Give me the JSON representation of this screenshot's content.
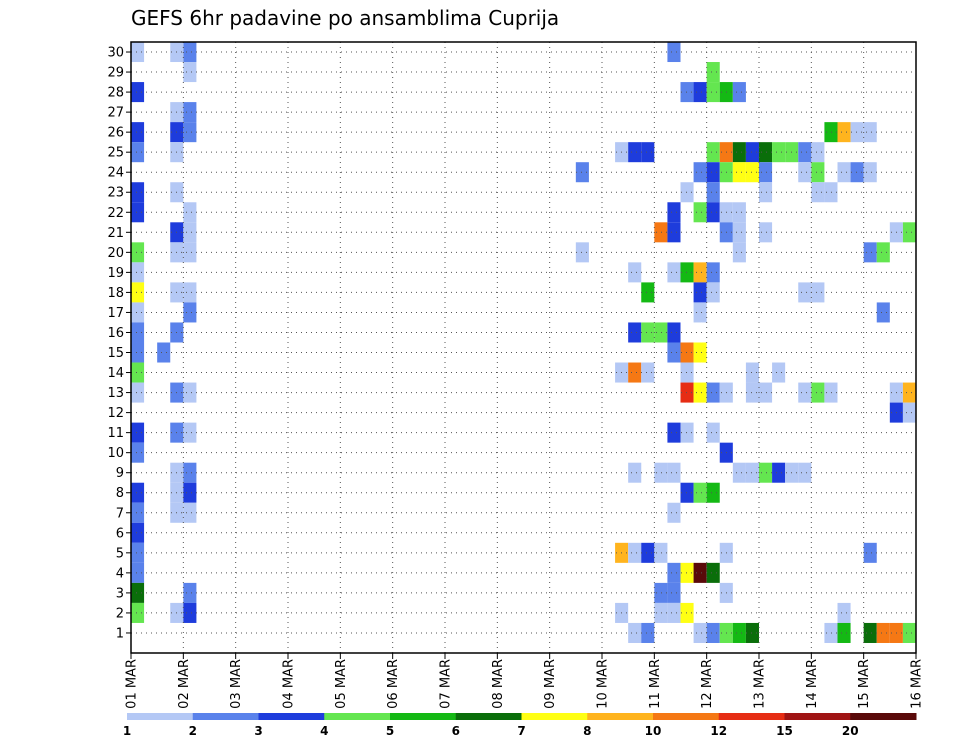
{
  "chart_data": {
    "type": "heatmap",
    "title": "GEFS 6hr padavine po ansamblima Cuprija",
    "xlabel": "",
    "ylabel": "",
    "x_tick_labels": [
      "01 MAR",
      "02 MAR",
      "03 MAR",
      "04 MAR",
      "05 MAR",
      "06 MAR",
      "07 MAR",
      "08 MAR",
      "09 MAR",
      "10 MAR",
      "11 MAR",
      "12 MAR",
      "13 MAR",
      "14 MAR",
      "15 MAR",
      "16 MAR"
    ],
    "y_tick_labels": [
      "1",
      "2",
      "3",
      "4",
      "5",
      "6",
      "7",
      "8",
      "9",
      "10",
      "11",
      "12",
      "13",
      "14",
      "15",
      "16",
      "17",
      "18",
      "19",
      "20",
      "21",
      "22",
      "23",
      "24",
      "25",
      "26",
      "27",
      "28",
      "29",
      "30"
    ],
    "x_range_days": [
      1,
      16
    ],
    "steps_per_day": 4,
    "members": 30,
    "grid": true,
    "legend": {
      "position": "bottom",
      "labels": [
        "1",
        "2",
        "3",
        "4",
        "5",
        "6",
        "7",
        "8",
        "10",
        "12",
        "15",
        "20"
      ],
      "colors": [
        "#b4c8f5",
        "#5a82eb",
        "#1e3cdc",
        "#64e650",
        "#14b914",
        "#0a6e0a",
        "#ffff14",
        "#ffb41e",
        "#f57814",
        "#e62d14",
        "#a01414",
        "#5a0a0a"
      ]
    },
    "colors": [
      "#b4c8f5",
      "#5a82eb",
      "#1e3cdc",
      "#64e650",
      "#14b914",
      "#0a6e0a",
      "#ffff14",
      "#ffb41e",
      "#f57814",
      "#e62d14",
      "#a01414",
      "#5a0a0a"
    ],
    "cells": [
      [
        30,
        1,
        0
      ],
      [
        30,
        5,
        1
      ],
      [
        30,
        4,
        0
      ],
      [
        30,
        42,
        1
      ],
      [
        29,
        5,
        0
      ],
      [
        29,
        45,
        3
      ],
      [
        28,
        1,
        2
      ],
      [
        28,
        43,
        1
      ],
      [
        28,
        44,
        2
      ],
      [
        28,
        45,
        3
      ],
      [
        28,
        46,
        4
      ],
      [
        28,
        47,
        1
      ],
      [
        27,
        4,
        0
      ],
      [
        27,
        5,
        1
      ],
      [
        26,
        1,
        2
      ],
      [
        26,
        4,
        2
      ],
      [
        26,
        5,
        1
      ],
      [
        26,
        54,
        4
      ],
      [
        26,
        55,
        7
      ],
      [
        26,
        56,
        0
      ],
      [
        26,
        57,
        0
      ],
      [
        25,
        1,
        1
      ],
      [
        25,
        4,
        0
      ],
      [
        25,
        38,
        0
      ],
      [
        25,
        39,
        2
      ],
      [
        25,
        40,
        2
      ],
      [
        25,
        45,
        3
      ],
      [
        25,
        46,
        8
      ],
      [
        25,
        47,
        5
      ],
      [
        25,
        48,
        2
      ],
      [
        25,
        49,
        5
      ],
      [
        25,
        50,
        3
      ],
      [
        25,
        51,
        3
      ],
      [
        25,
        52,
        1
      ],
      [
        25,
        53,
        0
      ],
      [
        24,
        35,
        1
      ],
      [
        24,
        44,
        1
      ],
      [
        24,
        45,
        2
      ],
      [
        24,
        46,
        3
      ],
      [
        24,
        47,
        6
      ],
      [
        24,
        48,
        6
      ],
      [
        24,
        49,
        1
      ],
      [
        24,
        52,
        0
      ],
      [
        24,
        53,
        3
      ],
      [
        24,
        55,
        0
      ],
      [
        24,
        56,
        1
      ],
      [
        24,
        57,
        0
      ],
      [
        23,
        1,
        2
      ],
      [
        23,
        4,
        0
      ],
      [
        23,
        43,
        0
      ],
      [
        23,
        45,
        1
      ],
      [
        23,
        49,
        0
      ],
      [
        23,
        53,
        0
      ],
      [
        23,
        54,
        0
      ],
      [
        22,
        1,
        2
      ],
      [
        22,
        5,
        0
      ],
      [
        22,
        42,
        2
      ],
      [
        22,
        44,
        3
      ],
      [
        22,
        45,
        2
      ],
      [
        22,
        46,
        0
      ],
      [
        22,
        47,
        0
      ],
      [
        21,
        4,
        2
      ],
      [
        21,
        5,
        0
      ],
      [
        21,
        41,
        8
      ],
      [
        21,
        42,
        2
      ],
      [
        21,
        46,
        1
      ],
      [
        21,
        47,
        0
      ],
      [
        21,
        49,
        0
      ],
      [
        21,
        59,
        0
      ],
      [
        21,
        60,
        3
      ],
      [
        20,
        1,
        3
      ],
      [
        20,
        4,
        0
      ],
      [
        20,
        5,
        0
      ],
      [
        20,
        35,
        0
      ],
      [
        20,
        47,
        0
      ],
      [
        20,
        57,
        1
      ],
      [
        20,
        58,
        3
      ],
      [
        19,
        1,
        0
      ],
      [
        19,
        39,
        0
      ],
      [
        19,
        42,
        0
      ],
      [
        19,
        43,
        4
      ],
      [
        19,
        44,
        7
      ],
      [
        19,
        45,
        1
      ],
      [
        18,
        1,
        6
      ],
      [
        18,
        4,
        0
      ],
      [
        18,
        5,
        0
      ],
      [
        18,
        40,
        4
      ],
      [
        18,
        44,
        2
      ],
      [
        18,
        45,
        0
      ],
      [
        18,
        52,
        0
      ],
      [
        18,
        53,
        0
      ],
      [
        17,
        1,
        0
      ],
      [
        17,
        5,
        1
      ],
      [
        17,
        44,
        0
      ],
      [
        17,
        58,
        1
      ],
      [
        16,
        1,
        1
      ],
      [
        16,
        4,
        1
      ],
      [
        16,
        39,
        2
      ],
      [
        16,
        40,
        3
      ],
      [
        16,
        41,
        3
      ],
      [
        16,
        42,
        2
      ],
      [
        15,
        1,
        1
      ],
      [
        15,
        3,
        1
      ],
      [
        15,
        42,
        1
      ],
      [
        15,
        43,
        8
      ],
      [
        15,
        44,
        6
      ],
      [
        14,
        1,
        3
      ],
      [
        14,
        38,
        0
      ],
      [
        14,
        39,
        8
      ],
      [
        14,
        40,
        0
      ],
      [
        14,
        43,
        0
      ],
      [
        14,
        48,
        0
      ],
      [
        14,
        50,
        0
      ],
      [
        13,
        1,
        0
      ],
      [
        13,
        4,
        1
      ],
      [
        13,
        5,
        0
      ],
      [
        13,
        43,
        9
      ],
      [
        13,
        44,
        6
      ],
      [
        13,
        45,
        1
      ],
      [
        13,
        46,
        0
      ],
      [
        13,
        48,
        0
      ],
      [
        13,
        49,
        0
      ],
      [
        13,
        52,
        0
      ],
      [
        13,
        53,
        3
      ],
      [
        13,
        54,
        0
      ],
      [
        13,
        59,
        0
      ],
      [
        13,
        60,
        7
      ],
      [
        12,
        59,
        2
      ],
      [
        12,
        60,
        0
      ],
      [
        11,
        1,
        2
      ],
      [
        11,
        4,
        1
      ],
      [
        11,
        5,
        0
      ],
      [
        11,
        42,
        2
      ],
      [
        11,
        43,
        0
      ],
      [
        11,
        45,
        0
      ],
      [
        10,
        1,
        1
      ],
      [
        10,
        46,
        2
      ],
      [
        9,
        4,
        0
      ],
      [
        9,
        5,
        1
      ],
      [
        9,
        39,
        0
      ],
      [
        9,
        41,
        0
      ],
      [
        9,
        42,
        0
      ],
      [
        9,
        47,
        0
      ],
      [
        9,
        48,
        0
      ],
      [
        9,
        49,
        3
      ],
      [
        9,
        50,
        2
      ],
      [
        9,
        51,
        0
      ],
      [
        9,
        52,
        0
      ],
      [
        8,
        1,
        2
      ],
      [
        8,
        4,
        0
      ],
      [
        8,
        5,
        2
      ],
      [
        8,
        43,
        2
      ],
      [
        8,
        44,
        3
      ],
      [
        8,
        45,
        4
      ],
      [
        7,
        1,
        1
      ],
      [
        7,
        4,
        0
      ],
      [
        7,
        5,
        0
      ],
      [
        7,
        42,
        0
      ],
      [
        6,
        1,
        2
      ],
      [
        5,
        1,
        1
      ],
      [
        5,
        38,
        7
      ],
      [
        5,
        39,
        0
      ],
      [
        5,
        40,
        2
      ],
      [
        5,
        41,
        0
      ],
      [
        5,
        46,
        0
      ],
      [
        5,
        57,
        1
      ],
      [
        4,
        1,
        1
      ],
      [
        4,
        42,
        1
      ],
      [
        4,
        43,
        6
      ],
      [
        4,
        44,
        11
      ],
      [
        4,
        45,
        5
      ],
      [
        3,
        1,
        5
      ],
      [
        3,
        5,
        1
      ],
      [
        3,
        41,
        1
      ],
      [
        3,
        42,
        1
      ],
      [
        3,
        46,
        0
      ],
      [
        2,
        1,
        3
      ],
      [
        2,
        4,
        0
      ],
      [
        2,
        5,
        2
      ],
      [
        2,
        38,
        0
      ],
      [
        2,
        41,
        0
      ],
      [
        2,
        42,
        0
      ],
      [
        2,
        43,
        6
      ],
      [
        2,
        55,
        0
      ],
      [
        1,
        39,
        0
      ],
      [
        1,
        40,
        1
      ],
      [
        1,
        44,
        0
      ],
      [
        1,
        45,
        1
      ],
      [
        1,
        46,
        3
      ],
      [
        1,
        47,
        4
      ],
      [
        1,
        48,
        5
      ],
      [
        1,
        54,
        0
      ],
      [
        1,
        55,
        4
      ],
      [
        1,
        57,
        5
      ],
      [
        1,
        58,
        8
      ],
      [
        1,
        59,
        8
      ],
      [
        1,
        60,
        3
      ]
    ]
  }
}
